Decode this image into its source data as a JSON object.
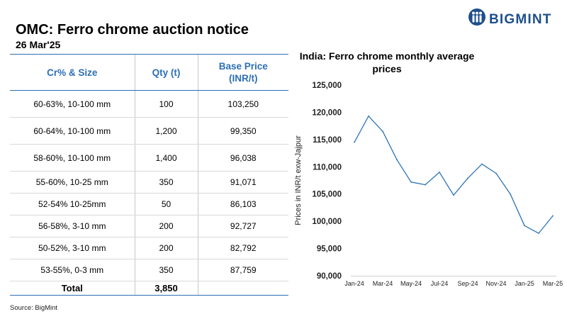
{
  "logo": {
    "text": "BIGMINT",
    "color": "#1d4f8c"
  },
  "header": {
    "title": "OMC: Ferro chrome auction notice",
    "date": "26 Mar'25"
  },
  "table": {
    "columns": [
      "Cr% & Size",
      "Qty (t)",
      "Base Price (INR/t)"
    ],
    "rows": [
      [
        "60-63%,  10-100 mm",
        "100",
        "103,250"
      ],
      [
        "60-64%,  10-100 mm",
        "1,200",
        "99,350"
      ],
      [
        "58-60%,  10-100 mm",
        "1,400",
        "96,038"
      ],
      [
        "55-60%,  10-25 mm",
        "350",
        "91,071"
      ],
      [
        "52-54%  10-25mm",
        "50",
        "86,103"
      ],
      [
        "56-58%,  3-10 mm",
        "200",
        "92,727"
      ],
      [
        "50-52%,  3-10 mm",
        "200",
        "82,792"
      ],
      [
        "53-55%,  0-3 mm",
        "350",
        "87,759"
      ]
    ],
    "total": {
      "label": "Total",
      "qty": "3,850",
      "price": ""
    },
    "header_color": "#2e6fb4"
  },
  "source": "Source: BigMint",
  "chart_data": {
    "type": "line",
    "title": "India: Ferro chrome monthly average prices",
    "ylabel": "Prices in INR/t exw-Jajpur",
    "xlabel": "",
    "x": [
      "Jan-24",
      "Feb-24",
      "Mar-24",
      "Apr-24",
      "May-24",
      "Jun-24",
      "Jul-24",
      "Aug-24",
      "Sep-24",
      "Oct-24",
      "Nov-24",
      "Dec-24",
      "Jan-25",
      "Feb-25",
      "Mar-25"
    ],
    "x_tick_labels": [
      "Jan-24",
      "Mar-24",
      "May-24",
      "Jul-24",
      "Sep-24",
      "Nov-24",
      "Jan-25",
      "Mar-25"
    ],
    "series": [
      {
        "values": [
          114500,
          119300,
          116500,
          111300,
          107200,
          106700,
          109000,
          104800,
          107900,
          110500,
          108800,
          105000,
          99200,
          97800,
          101000
        ]
      }
    ],
    "ylim": [
      90000,
      125000
    ],
    "yticks": [
      90000,
      95000,
      100000,
      105000,
      110000,
      115000,
      120000,
      125000
    ],
    "ytick_labels": [
      "90,000",
      "95,000",
      "100,000",
      "105,000",
      "110,000",
      "115,000",
      "120,000",
      "125,000"
    ],
    "grid": false,
    "line_color": "#2e75b6"
  }
}
